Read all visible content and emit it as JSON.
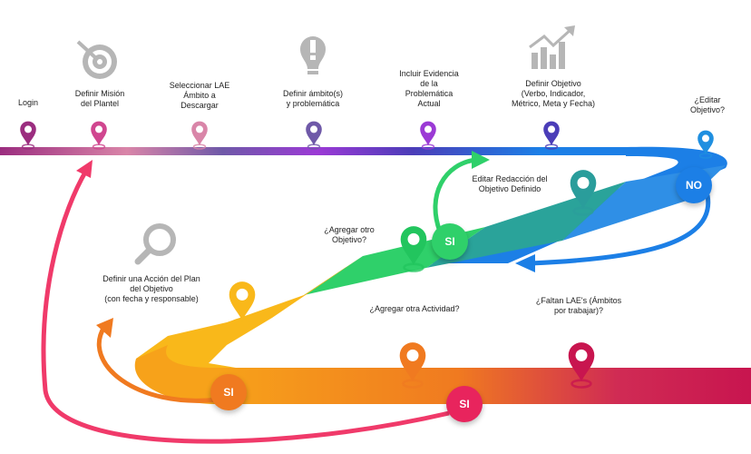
{
  "steps": {
    "login": "Login",
    "mision": "Definir Misión\ndel Plantel",
    "lae": "Seleccionar LAE\nÁmbito a\nDescargar",
    "ambito": "Definir ámbito(s)\ny problemática",
    "evidencia": "Incluir Evidencia\nde la\nProblemática\nActual",
    "objetivo": "Definir Objetivo\n(Verbo, Indicador,\nMétrico, Meta y Fecha)",
    "editar_q": "¿Editar\nObjetivo?",
    "redaccion": "Editar Redacción del\nObjetivo Definido",
    "otro_obj": "¿Agregar otro\nObjetivo?",
    "accion": "Definir una Acción del Plan\ndel Objetivo\n(con fecha y responsable)",
    "otra_act": "¿Agregar otra Actividad?",
    "faltan": "¿Faltan LAE's (Ámbitos\npor trabajar)?"
  },
  "badges": {
    "no": "NO",
    "si1": "SI",
    "si2": "SI",
    "si3": "SI"
  },
  "icons": [
    "target-icon",
    "idea-bulb-icon",
    "growth-chart-icon",
    "magnifier-icon"
  ],
  "colors": {
    "login": "#9b2d7f",
    "mision": "#d0468f",
    "lae": "#d985a8",
    "ambito": "#6f59a8",
    "evidencia": "#9b3ad5",
    "objetivo": "#4b3db8",
    "editar": "#1f8fe0",
    "blue": "#1c7fe6",
    "teal": "#2a9d9b",
    "green": "#22c55e",
    "yellow": "#f9b81a",
    "orange": "#f07a20",
    "crimson": "#c8154f",
    "pink": "#f03a6a"
  }
}
